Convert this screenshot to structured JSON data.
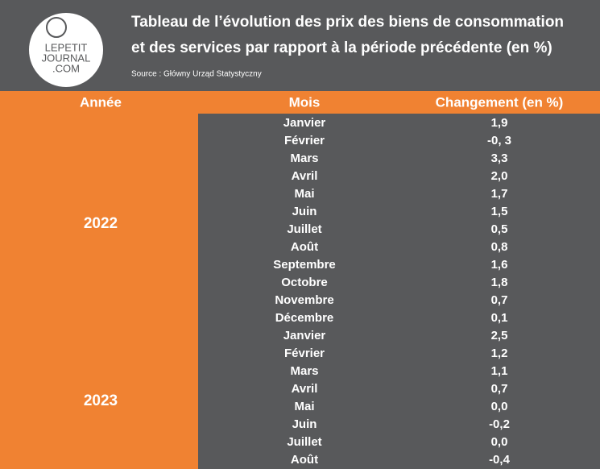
{
  "header": {
    "title_lines": [
      "Tableau de l’évolution des prix des biens de consommation",
      "et des services par rapport à la période précédente (en %)"
    ],
    "source": "Source : Główny Urząd Statystyczny",
    "logo": [
      "LEPETIT",
      "JOURNAL",
      ".COM"
    ]
  },
  "table": {
    "columns": [
      "Année",
      "Mois",
      "Changement (en %)"
    ],
    "groups": [
      {
        "year": "2022",
        "rows": [
          [
            "Janvier",
            "1,9"
          ],
          [
            "Février",
            "-0, 3"
          ],
          [
            "Mars",
            "3,3"
          ],
          [
            "Avril",
            "2,0"
          ],
          [
            "Mai",
            "1,7"
          ],
          [
            "Juin",
            "1,5"
          ],
          [
            "Juillet",
            "0,5"
          ],
          [
            "Août",
            "0,8"
          ],
          [
            "Septembre",
            "1,6"
          ],
          [
            "Octobre",
            "1,8"
          ],
          [
            "Novembre",
            "0,7"
          ],
          [
            "Décembre",
            "0,1"
          ]
        ]
      },
      {
        "year": "2023",
        "rows": [
          [
            "Janvier",
            "2,5"
          ],
          [
            "Février",
            "1,2"
          ],
          [
            "Mars",
            "1,1"
          ],
          [
            "Avril",
            "0,7"
          ],
          [
            "Mai",
            "0,0"
          ],
          [
            "Juin",
            "-0,2"
          ],
          [
            "Juillet",
            "0,0"
          ],
          [
            "Août",
            "-0,4"
          ]
        ]
      }
    ]
  }
}
